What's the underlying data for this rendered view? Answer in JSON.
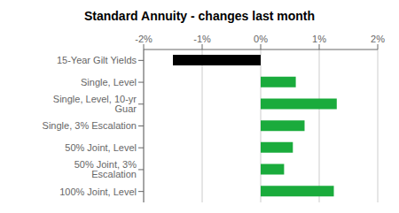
{
  "chart_data": {
    "type": "bar",
    "orientation": "horizontal",
    "title": "Standard Annuity - changes last month",
    "categories": [
      "15-Year Gilt Yields",
      "Single, Level",
      "Single, Level, 10-yr Guar",
      "Single, 3% Escalation",
      "50% Joint, Level",
      "50% Joint, 3% Escalation",
      "100% Joint, Level"
    ],
    "values": [
      -1.5,
      0.6,
      1.3,
      0.75,
      0.55,
      0.4,
      1.25
    ],
    "colors": [
      "#000000",
      "#1aab3c",
      "#1aab3c",
      "#1aab3c",
      "#1aab3c",
      "#1aab3c",
      "#1aab3c"
    ],
    "xlim": [
      -2.0,
      2.0
    ],
    "xticks": [
      {
        "value": -2,
        "label": "-2%"
      },
      {
        "value": -1,
        "label": "-1%"
      },
      {
        "value": 0,
        "label": "0%"
      },
      {
        "value": 1,
        "label": "1%"
      },
      {
        "value": 2,
        "label": "2%"
      }
    ],
    "grid": true
  }
}
